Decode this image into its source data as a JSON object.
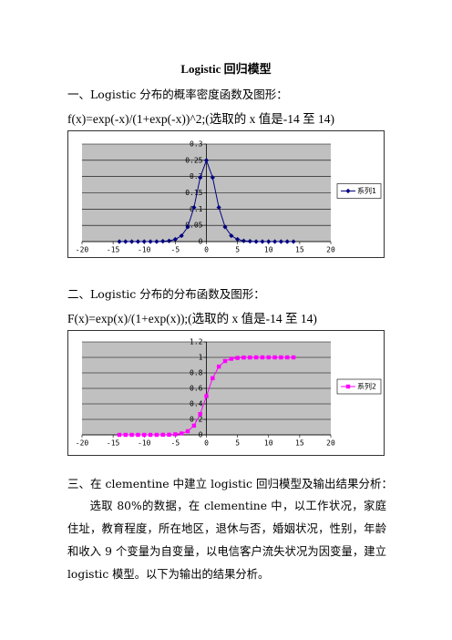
{
  "document": {
    "title": "Logistic 回归模型",
    "sections": [
      {
        "heading": "一、Logistic 分布的概率密度函数及图形：",
        "formula": "f(x)=exp(-x)/(1+exp(-x))^2;(选取的 x 值是-14 至 14)"
      },
      {
        "heading": "二、Logistic 分布的分布函数及图形：",
        "formula": "F(x)=exp(x)/(1+exp(x));(选取的 x 值是-14 至 14)"
      },
      {
        "heading": "三、在 clementine 中建立 logistic 回归模型及输出结果分析：",
        "paragraph": "选取 80%的数据，在 clementine 中，以工作状况，家庭住址，教育程度，所在地区，退休与否，婚姻状况，性别，年龄和收入 9 个变量为自变量，以电信客户流失状况为因变量，建立 logistic 模型。以下为输出的结果分析。"
      }
    ]
  },
  "chart_data": [
    {
      "type": "line",
      "x": [
        -14,
        -13,
        -12,
        -11,
        -10,
        -9,
        -8,
        -7,
        -6,
        -5,
        -4,
        -3,
        -2,
        -1,
        0,
        1,
        2,
        3,
        4,
        5,
        6,
        7,
        8,
        9,
        10,
        11,
        12,
        13,
        14
      ],
      "series": [
        {
          "name": "系列1",
          "color": "#000080",
          "marker": "diamond",
          "values": [
            0,
            0,
            0,
            0,
            0,
            0,
            0,
            0.001,
            0.002,
            0.007,
            0.018,
            0.045,
            0.105,
            0.197,
            0.25,
            0.197,
            0.105,
            0.045,
            0.018,
            0.007,
            0.002,
            0.001,
            0,
            0,
            0,
            0,
            0,
            0,
            0
          ]
        }
      ],
      "xlim": [
        -20,
        20
      ],
      "xticks": [
        -20,
        -15,
        -10,
        -5,
        0,
        5,
        10,
        15,
        20
      ],
      "ylim": [
        0,
        0.3
      ],
      "yticks": [
        0,
        0.05,
        0.1,
        0.15,
        0.2,
        0.25,
        0.3
      ],
      "grid": true,
      "legend": "right"
    },
    {
      "type": "line",
      "x": [
        -14,
        -13,
        -12,
        -11,
        -10,
        -9,
        -8,
        -7,
        -6,
        -5,
        -4,
        -3,
        -2,
        -1,
        0,
        1,
        2,
        3,
        4,
        5,
        6,
        7,
        8,
        9,
        10,
        11,
        12,
        13,
        14
      ],
      "series": [
        {
          "name": "系列2",
          "color": "#ff00ff",
          "marker": "square",
          "values": [
            0,
            0,
            0,
            0,
            0,
            0,
            0,
            0.001,
            0.002,
            0.007,
            0.018,
            0.047,
            0.119,
            0.269,
            0.5,
            0.731,
            0.881,
            0.953,
            0.982,
            0.993,
            0.998,
            0.999,
            1,
            1,
            1,
            1,
            1,
            1,
            1
          ]
        }
      ],
      "xlim": [
        -20,
        20
      ],
      "xticks": [
        -20,
        -15,
        -10,
        -5,
        0,
        5,
        10,
        15,
        20
      ],
      "ylim": [
        0,
        1.2
      ],
      "yticks": [
        0,
        0.2,
        0.4,
        0.6,
        0.8,
        1,
        1.2
      ],
      "grid": true,
      "legend": "right"
    }
  ]
}
